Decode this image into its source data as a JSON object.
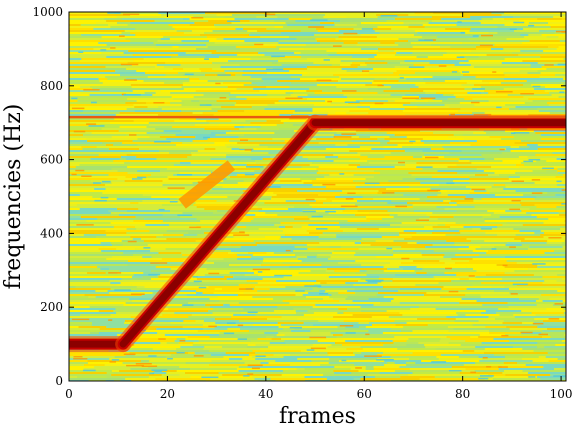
{
  "chart_data": {
    "type": "heatmap",
    "title": "",
    "xlabel": "frames",
    "ylabel": "frequencies (Hz)",
    "xlim": [
      0,
      101
    ],
    "ylim": [
      0,
      1000
    ],
    "xticks": [
      0,
      20,
      40,
      60,
      80,
      100
    ],
    "yticks": [
      0,
      200,
      400,
      600,
      800,
      1000
    ],
    "colormap": "jet",
    "background_level": "green-yellow noise",
    "features": [
      {
        "kind": "chirp",
        "segments": [
          {
            "x": [
              0,
              11
            ],
            "y": [
              100,
              100
            ]
          },
          {
            "x": [
              11,
              50
            ],
            "y": [
              100,
              700
            ]
          },
          {
            "x": [
              50,
              101
            ],
            "y": [
              700,
              700
            ]
          }
        ],
        "color": "#8b0000"
      },
      {
        "kind": "harmonic-line",
        "x": [
          0,
          101
        ],
        "y": [
          715,
          715
        ],
        "color": "#e85a10"
      },
      {
        "kind": "faint-segment",
        "x": [
          23,
          33
        ],
        "y": [
          480,
          585
        ],
        "color": "#ff9c00"
      }
    ]
  }
}
